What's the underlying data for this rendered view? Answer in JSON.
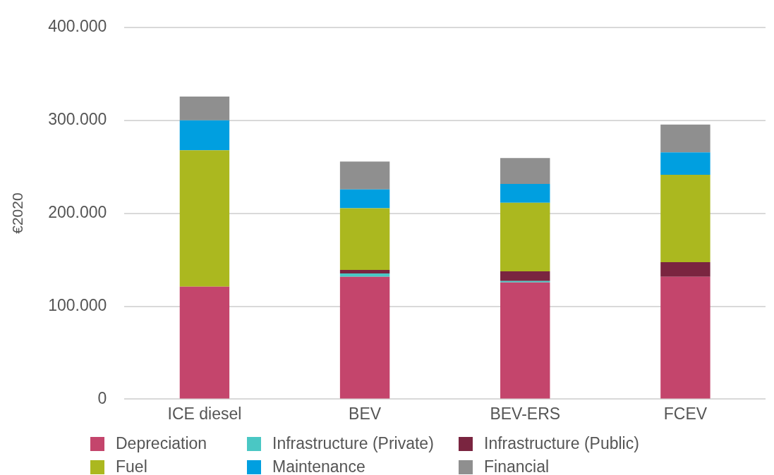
{
  "chart_data": {
    "type": "bar",
    "stacked": true,
    "ylabel": "€2020",
    "categories": [
      "ICE diesel",
      "BEV",
      "BEV-ERS",
      "FCEV"
    ],
    "series": [
      {
        "name": "Depreciation",
        "color": "#c4456c",
        "values": [
          121000,
          131600,
          125600,
          131600
        ]
      },
      {
        "name": "Infrastructure (Private)",
        "color": "#4ac7c4",
        "values": [
          0,
          3700,
          1500,
          0
        ]
      },
      {
        "name": "Infrastructure (Public)",
        "color": "#7a2540",
        "values": [
          0,
          3700,
          10500,
          15800
        ]
      },
      {
        "name": "Fuel",
        "color": "#abb81f",
        "values": [
          146700,
          66300,
          73700,
          94000
        ]
      },
      {
        "name": "Maintenance",
        "color": "#009fe0",
        "values": [
          32300,
          20300,
          20300,
          24000
        ]
      },
      {
        "name": "Financial",
        "color": "#8f8f8f",
        "values": [
          25600,
          30000,
          27800,
          30100
        ]
      }
    ],
    "ylim": [
      0,
      400000
    ],
    "yticks": [
      {
        "value": 0,
        "label": "0"
      },
      {
        "value": 100000,
        "label": "100.000"
      },
      {
        "value": 200000,
        "label": "200.000"
      },
      {
        "value": 300000,
        "label": "300.000"
      },
      {
        "value": 400000,
        "label": "400.000"
      }
    ],
    "grid": "y",
    "legend": "bottom"
  }
}
